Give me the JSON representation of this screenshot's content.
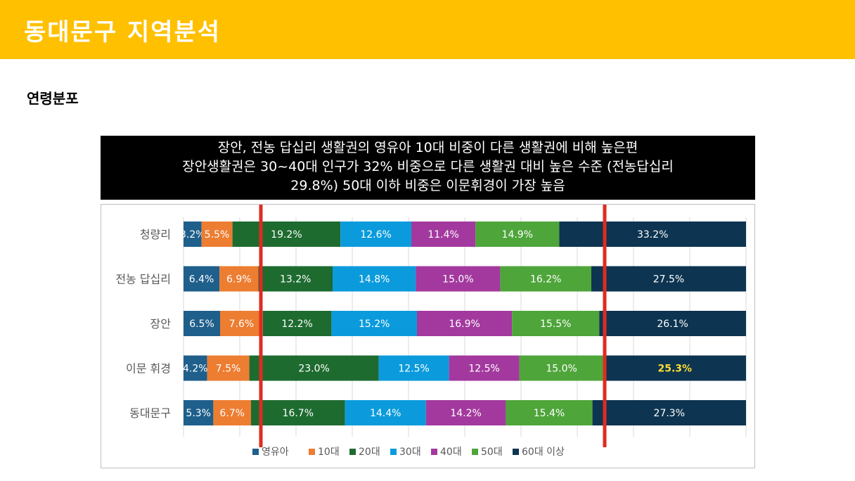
{
  "page": {
    "title": "동대문구 지역분석",
    "section_title": "연령분포"
  },
  "banner": {
    "lines": [
      "장안, 전농 답십리 생활권의 영유아 10대 비중이 다른 생활권에 비해 높은편",
      "장안생활권은 30~40대 인구가 32% 비중으로 다른 생활권 대비 높은 수준 (전농답십리",
      "29.8%)  50대 이하 비중은 이문휘경이 가장 높음"
    ]
  },
  "colors": {
    "header_bg": "#ffc000",
    "highlight_line": "#e02b20",
    "highlight_label": "#ffdd33"
  },
  "chart_data": {
    "type": "bar",
    "orientation": "horizontal",
    "stacked": "100%",
    "categories": [
      "청량리",
      "전농 답십리",
      "장안",
      "이문 휘경",
      "동대문구"
    ],
    "series": [
      {
        "name": "영유아",
        "color": "#1f5f8b",
        "values": [
          3.2,
          6.4,
          6.5,
          4.2,
          5.3
        ]
      },
      {
        "name": "10대",
        "color": "#ed7d31",
        "values": [
          5.5,
          6.9,
          7.6,
          7.5,
          6.7
        ]
      },
      {
        "name": "20대",
        "color": "#1e6b30",
        "values": [
          19.2,
          13.2,
          12.2,
          23.0,
          16.7
        ]
      },
      {
        "name": "30대",
        "color": "#0b9bdc",
        "values": [
          12.6,
          14.8,
          15.2,
          12.5,
          14.4
        ]
      },
      {
        "name": "40대",
        "color": "#a3399e",
        "values": [
          11.4,
          15.0,
          16.9,
          12.5,
          14.2
        ]
      },
      {
        "name": "50대",
        "color": "#4ea53a",
        "values": [
          14.9,
          16.2,
          15.5,
          15.0,
          15.4
        ]
      },
      {
        "name": "60대 이상",
        "color": "#0d3450",
        "values": [
          33.2,
          27.5,
          26.1,
          25.3,
          27.3
        ]
      }
    ],
    "data_labels": [
      [
        "3.2%",
        "5.5%",
        "19.2%",
        "12.6%",
        "11.4%",
        "14.9%",
        "33.2%"
      ],
      [
        "6.4%",
        "6.9%",
        "13.2%",
        "14.8%",
        "15.0%",
        "16.2%",
        "27.5%"
      ],
      [
        "6.5%",
        "7.6%",
        "12.2%",
        "15.2%",
        "16.9%",
        "15.5%",
        "26.1%"
      ],
      [
        "4.2%",
        "7.5%",
        "23.0%",
        "12.5%",
        "12.5%",
        "15.0%",
        "25.3%"
      ],
      [
        "5.3%",
        "6.7%",
        "16.7%",
        "14.4%",
        "14.2%",
        "15.4%",
        "27.3%"
      ]
    ],
    "highlighted_label": {
      "category": "이문 휘경",
      "series": "60대 이상"
    },
    "xlim": [
      0,
      100
    ],
    "grid": true,
    "legend_position": "bottom"
  }
}
